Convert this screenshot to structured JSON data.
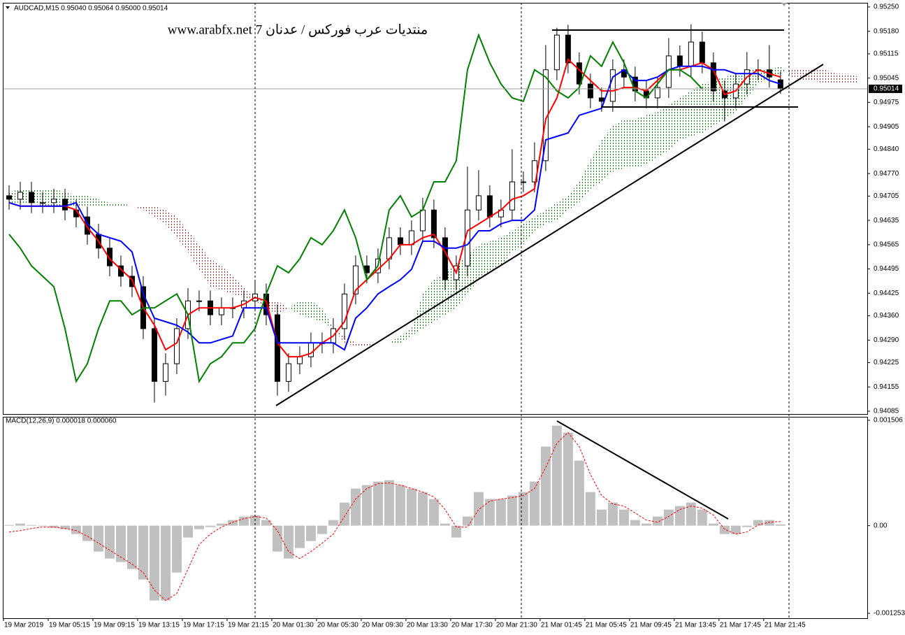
{
  "chart_data": [
    {
      "type": "candlestick",
      "title": "AUDCAD,M15  0.95040 0.95064 0.95000 0.95014",
      "annotation": "منتديات عرب فوركس / عدنان 7 www.arabfx.net",
      "xlim": [
        0,
        77.2
      ],
      "xticks": [
        {
          "value": 0,
          "label": "19 Mar 2019"
        },
        {
          "value": 4,
          "label": "19 Mar 05:15"
        },
        {
          "value": 8,
          "label": "19 Mar 09:15"
        },
        {
          "value": 12,
          "label": "19 Mar 13:15"
        },
        {
          "value": 16,
          "label": "19 Mar 17:15"
        },
        {
          "value": 20,
          "label": "19 Mar 21:15"
        },
        {
          "value": 24,
          "label": "20 Mar 01:30"
        },
        {
          "value": 28,
          "label": "20 Mar 05:30"
        },
        {
          "value": 32,
          "label": "20 Mar 09:30"
        },
        {
          "value": 36,
          "label": "20 Mar 13:30"
        },
        {
          "value": 40,
          "label": "20 Mar 17:30"
        },
        {
          "value": 44,
          "label": "20 Mar 21:30"
        },
        {
          "value": 48,
          "label": "21 Mar 01:45"
        },
        {
          "value": 52,
          "label": "21 Mar 05:45"
        },
        {
          "value": 56,
          "label": "21 Mar 09:45"
        },
        {
          "value": 60,
          "label": "21 Mar 13:45"
        },
        {
          "value": 64,
          "label": "21 Mar 17:45"
        },
        {
          "value": 68,
          "label": "21 Mar 21:45"
        }
      ],
      "ylim": [
        0.94077,
        0.95262
      ],
      "yticks": [
        {
          "value": 0.9525,
          "label": "0.95250"
        },
        {
          "value": 0.9518,
          "label": "0.95180"
        },
        0.95115,
        0.95045,
        0.94975,
        0.94905,
        {
          "value": 0.9484,
          "label": "0.94840"
        },
        {
          "value": 0.9477,
          "label": "0.94770"
        },
        0.94705,
        0.94635,
        0.94565,
        0.94495,
        0.94425,
        {
          "value": 0.9436,
          "label": "0.94360"
        },
        {
          "value": 0.9429,
          "label": "0.94290"
        },
        0.94225,
        0.94155,
        0.94085
      ],
      "grid": false,
      "up_color": "#ffffff",
      "down_color": "#000000",
      "wick_color": "#000000",
      "open": [
        0.94706,
        0.94696,
        0.94716,
        0.94686,
        0.94686,
        0.94696,
        0.94665,
        0.94645,
        0.94595,
        0.94555,
        0.94504,
        0.94474,
        0.94444,
        0.94323,
        0.94171,
        0.94222,
        0.94323,
        0.94403,
        0.94403,
        0.94363,
        0.94383,
        0.94383,
        0.94403,
        0.94423,
        0.94363,
        0.94171,
        0.94222,
        0.94242,
        0.94282,
        0.94282,
        0.94323,
        0.94423,
        0.94504,
        0.94484,
        0.94524,
        0.94585,
        0.94565,
        0.94605,
        0.94665,
        0.94585,
        0.94464,
        0.94504,
        0.94665,
        0.94706,
        0.94645,
        0.94665,
        0.94746,
        0.94746,
        0.94807,
        0.95069,
        0.95169,
        0.95089,
        0.95028,
        0.94988,
        0.94978,
        0.95069,
        0.95048,
        0.95008,
        0.94988,
        0.95018,
        0.95109,
        0.95079,
        0.95149,
        0.95089,
        0.95008,
        0.94988,
        0.95028,
        0.95069,
        0.95069,
        0.9504
      ],
      "high": [
        0.94736,
        0.94746,
        0.94746,
        0.94716,
        0.94726,
        0.94726,
        0.94695,
        0.94675,
        0.94625,
        0.94585,
        0.94534,
        0.94504,
        0.94474,
        0.94353,
        0.94252,
        0.94353,
        0.9444,
        0.94433,
        0.94433,
        0.94413,
        0.94413,
        0.94433,
        0.9446,
        0.94453,
        0.94393,
        0.94252,
        0.94272,
        0.94312,
        0.94312,
        0.94353,
        0.94453,
        0.94534,
        0.94534,
        0.94554,
        0.94615,
        0.94615,
        0.94635,
        0.947,
        0.94695,
        0.94615,
        0.94534,
        0.9479,
        0.9478,
        0.94736,
        0.94695,
        0.9484,
        0.94776,
        0.9486,
        0.9514,
        0.9519,
        0.95199,
        0.95119,
        0.95058,
        0.95018,
        0.95099,
        0.95099,
        0.95078,
        0.95038,
        0.95048,
        0.9516,
        0.95139,
        0.952,
        0.95179,
        0.95119,
        0.95038,
        0.95058,
        0.9512,
        0.95099,
        0.9514,
        0.95064
      ],
      "low": [
        0.94666,
        0.94666,
        0.94656,
        0.94656,
        0.94656,
        0.94635,
        0.94615,
        0.94565,
        0.94525,
        0.94474,
        0.94444,
        0.94414,
        0.94293,
        0.9411,
        0.9413,
        0.94192,
        0.94293,
        0.94373,
        0.94333,
        0.94333,
        0.94353,
        0.94353,
        0.94373,
        0.94333,
        0.9413,
        0.94141,
        0.94192,
        0.94212,
        0.94252,
        0.94252,
        0.94293,
        0.94393,
        0.94454,
        0.94454,
        0.94494,
        0.94535,
        0.94535,
        0.94575,
        0.94555,
        0.94434,
        0.94434,
        0.94474,
        0.94635,
        0.94615,
        0.94615,
        0.94635,
        0.94716,
        0.94716,
        0.94777,
        0.95039,
        0.95059,
        0.94998,
        0.94958,
        0.94948,
        0.94948,
        0.95018,
        0.94978,
        0.94958,
        0.94958,
        0.94988,
        0.95049,
        0.95049,
        0.95059,
        0.94978,
        0.9492,
        0.94958,
        0.94998,
        0.95039,
        0.95018,
        0.95
      ],
      "close": [
        0.94696,
        0.94716,
        0.94686,
        0.94686,
        0.94696,
        0.94665,
        0.94645,
        0.94595,
        0.94555,
        0.94504,
        0.94474,
        0.94444,
        0.94323,
        0.94171,
        0.94222,
        0.94323,
        0.94403,
        0.94403,
        0.94363,
        0.94383,
        0.94383,
        0.94403,
        0.94423,
        0.94363,
        0.94171,
        0.94222,
        0.94242,
        0.94282,
        0.94282,
        0.94323,
        0.94423,
        0.94504,
        0.94484,
        0.94524,
        0.94585,
        0.94565,
        0.94605,
        0.94665,
        0.94585,
        0.94464,
        0.94504,
        0.94665,
        0.94706,
        0.94645,
        0.94665,
        0.94746,
        0.94746,
        0.94807,
        0.95069,
        0.95169,
        0.95089,
        0.95028,
        0.94988,
        0.94978,
        0.95069,
        0.95048,
        0.95008,
        0.94988,
        0.95018,
        0.95109,
        0.95079,
        0.95149,
        0.95089,
        0.95008,
        0.94988,
        0.95028,
        0.95069,
        0.95069,
        0.95048,
        0.95014
      ],
      "series": [
        {
          "color": "#ff0000",
          "values": [
            0.94686,
            0.94676,
            0.94676,
            0.94676,
            0.94676,
            0.94676,
            0.94665,
            0.94615,
            0.94575,
            0.94524,
            0.94494,
            0.94464,
            0.94383,
            0.94333,
            0.94262,
            0.94282,
            0.94363,
            0.94383,
            0.94383,
            0.94383,
            0.94383,
            0.94393,
            0.94413,
            0.94403,
            0.94282,
            0.94242,
            0.94242,
            0.94252,
            0.94282,
            0.94302,
            0.94343,
            0.94434,
            0.94464,
            0.94494,
            0.94524,
            0.94565,
            0.94565,
            0.94585,
            0.94595,
            0.94544,
            0.94484,
            0.94605,
            0.94625,
            0.94645,
            0.94665,
            0.94696,
            0.94706,
            0.94726,
            0.94927,
            0.94988,
            0.95099,
            0.95069,
            0.95038,
            0.95008,
            0.95008,
            0.95018,
            0.95018,
            0.95008,
            0.95038,
            0.95069,
            0.95069,
            0.95079,
            0.95089,
            0.95069,
            0.94998,
            0.95008,
            0.95048,
            0.95069,
            0.95058,
            0.95048
          ]
        },
        {
          "color": "#0000ff",
          "values": [
            0.94686,
            0.94676,
            0.94676,
            0.94676,
            0.94676,
            0.94676,
            0.94686,
            0.94625,
            0.94595,
            0.94585,
            0.94575,
            0.94544,
            0.94423,
            0.94353,
            0.94343,
            0.94333,
            0.94313,
            0.94282,
            0.94282,
            0.94292,
            0.94302,
            0.94383,
            0.94383,
            0.94383,
            0.94282,
            0.94282,
            0.94282,
            0.94282,
            0.94282,
            0.94282,
            0.94262,
            0.94353,
            0.94383,
            0.94423,
            0.94444,
            0.94464,
            0.94494,
            0.94575,
            0.94575,
            0.94555,
            0.94555,
            0.94565,
            0.94605,
            0.94605,
            0.94625,
            0.94635,
            0.94635,
            0.94665,
            0.94867,
            0.94877,
            0.94887,
            0.94938,
            0.94948,
            0.94958,
            0.95048,
            0.95069,
            0.95038,
            0.95038,
            0.95048,
            0.95069,
            0.95079,
            0.95079,
            0.95079,
            0.95069,
            0.95069,
            0.95058,
            0.95058,
            0.95058,
            0.95038,
            0.95028
          ]
        },
        {
          "color": "#008000",
          "values": [
            0.94595,
            0.94555,
            0.94504,
            0.94474,
            0.94444,
            0.94323,
            0.94171,
            0.94222,
            0.94323,
            0.94403,
            0.94403,
            0.94363,
            0.94383,
            0.94383,
            0.94403,
            0.94423,
            0.94363,
            0.94171,
            0.94222,
            0.94242,
            0.94282,
            0.94282,
            0.94323,
            0.94423,
            0.94504,
            0.94484,
            0.94524,
            0.94585,
            0.94565,
            0.94605,
            0.94665,
            0.94585,
            0.94464,
            0.94504,
            0.94665,
            0.94706,
            0.94645,
            0.94665,
            0.94746,
            0.94746,
            0.94807,
            0.95069,
            0.95169,
            0.95089,
            0.95028,
            0.94988,
            0.94978,
            0.95069,
            0.95048,
            0.95008,
            0.94988,
            0.95018,
            0.95109,
            0.95079,
            0.95149,
            0.95089,
            0.95008,
            0.94988,
            0.95028,
            0.95069,
            0.95069,
            0.95048,
            0.95014,
            null,
            null,
            null,
            null,
            null,
            null,
            null
          ]
        }
      ],
      "cloud": {
        "up_color": "#008000",
        "down_color": "#b22222",
        "span_a": [
          0.94716,
          0.94726,
          0.94726,
          0.94726,
          0.94726,
          0.94716,
          0.94706,
          0.94706,
          0.94696,
          0.94686,
          0.94686,
          0.94676,
          0.94665,
          0.94645,
          0.94625,
          0.94585,
          0.94544,
          0.94494,
          0.94444,
          0.94434,
          0.94423,
          0.94413,
          0.94403,
          0.94383,
          0.94363,
          0.94383,
          0.94403,
          0.94403,
          0.94383,
          0.94323,
          0.94282,
          0.94272,
          0.94272,
          0.94282,
          0.94282,
          0.94302,
          0.94323,
          0.94423,
          0.94464,
          0.94484,
          0.94514,
          0.94534,
          0.94565,
          0.94575,
          0.94585,
          0.94605,
          0.94625,
          0.94645,
          0.94665,
          0.94686,
          0.94706,
          0.94746,
          0.94807,
          0.94867,
          0.94907,
          0.94927,
          0.94927,
          0.94938,
          0.94948,
          0.94968,
          0.94988,
          0.95008,
          0.95028,
          0.95038,
          0.95048,
          0.95058,
          0.95069,
          0.95069,
          0.95069,
          0.95079,
          0.95048,
          0.95038,
          0.95038,
          0.95028,
          0.95028,
          0.95028,
          0.95028
        ],
        "span_b": [
          0.94686,
          0.94686,
          0.94686,
          0.94676,
          0.94676,
          0.94676,
          0.94676,
          0.94676,
          0.94676,
          0.94676,
          0.94676,
          0.94676,
          0.94676,
          0.94676,
          0.94665,
          0.94645,
          0.94605,
          0.94565,
          0.94524,
          0.94504,
          0.94474,
          0.94444,
          0.94413,
          0.94403,
          0.94403,
          0.94383,
          0.94363,
          0.94353,
          0.94343,
          0.94323,
          0.94302,
          0.94282,
          0.94282,
          0.94282,
          0.94282,
          0.94282,
          0.94302,
          0.94323,
          0.94343,
          0.94363,
          0.94383,
          0.94423,
          0.94464,
          0.94484,
          0.94504,
          0.94544,
          0.94565,
          0.94605,
          0.94625,
          0.94635,
          0.94665,
          0.94686,
          0.94726,
          0.94746,
          0.94776,
          0.94786,
          0.94786,
          0.94796,
          0.94817,
          0.94837,
          0.94867,
          0.94877,
          0.94887,
          0.94907,
          0.94927,
          0.94948,
          0.94988,
          0.95028,
          0.95048,
          0.95058,
          0.95069,
          0.95069,
          0.95069,
          0.95069,
          0.95058,
          0.95058,
          0.95048
        ]
      }
    },
    {
      "type": "macd",
      "title": "MACD(12,26,9) 0.000018 0.000060",
      "xlim": [
        0,
        77.2
      ],
      "ylim": [
        -0.001323,
        0.001546
      ],
      "yticks": [
        0.001506,
        {
          "value": 0,
          "label": "0.00"
        },
        -0.001253
      ],
      "grid": false,
      "color": "#c0c0c0",
      "values": [
        1e-05,
        3e-05,
        1e-05,
        -1e-05,
        -3e-05,
        -5e-05,
        -0.00012,
        -0.00022,
        -0.00037,
        -0.00047,
        -0.00052,
        -0.00062,
        -0.00077,
        -0.00107,
        -0.00107,
        -0.00067,
        -0.00017,
        -5e-05,
        -2e-05,
        3e-05,
        8e-05,
        0.00013,
        0.00015,
        8e-05,
        -0.00037,
        -0.00047,
        -0.00032,
        -0.00022,
        -0.00012,
        8e-05,
        0.00033,
        0.00053,
        0.00058,
        0.00063,
        0.00065,
        0.00058,
        0.00053,
        0.00048,
        0.00038,
        3e-05,
        -0.00017,
        0.00013,
        0.00048,
        0.00038,
        0.00038,
        0.00043,
        0.00048,
        0.00063,
        0.00113,
        0.00143,
        0.00133,
        0.00093,
        0.00048,
        0.00023,
        0.00033,
        0.00023,
        8e-05,
        3e-05,
        0.00013,
        0.00023,
        0.00028,
        0.00033,
        0.00023,
        3e-05,
        -0.00012,
        -0.00012,
        -2e-05,
        8e-05,
        8e-05,
        1.8e-05
      ],
      "signal": {
        "color": "#ff0000",
        "values": [
          -9e-05,
          -7e-05,
          -4e-05,
          -2e-05,
          -2e-05,
          -4e-05,
          -7e-05,
          -0.00015,
          -0.00025,
          -0.00035,
          -0.00045,
          -0.00055,
          -0.00067,
          -0.00092,
          -0.00107,
          -0.00097,
          -0.00062,
          -0.00027,
          -0.00012,
          -2e-05,
          5e-05,
          0.0001,
          0.00013,
          0.00011,
          -7e-05,
          -0.00037,
          -0.00047,
          -0.00037,
          -0.00025,
          -0.00012,
          0.00013,
          0.00038,
          0.00053,
          0.0006,
          0.00061,
          0.00058,
          0.00053,
          0.00048,
          0.00041,
          0.00023,
          -2e-05,
          -2e-05,
          0.00023,
          0.00035,
          0.00038,
          0.0004,
          0.00043,
          0.00053,
          0.00083,
          0.00118,
          0.00133,
          0.00113,
          0.00073,
          0.00043,
          0.00031,
          0.00028,
          0.00018,
          8e-05,
          5e-05,
          0.00013,
          0.00023,
          0.00028,
          0.00025,
          0.00015,
          -5e-05,
          -0.00012,
          -9e-05,
          1e-05,
          5e-05,
          6e-05
        ]
      }
    }
  ]
}
